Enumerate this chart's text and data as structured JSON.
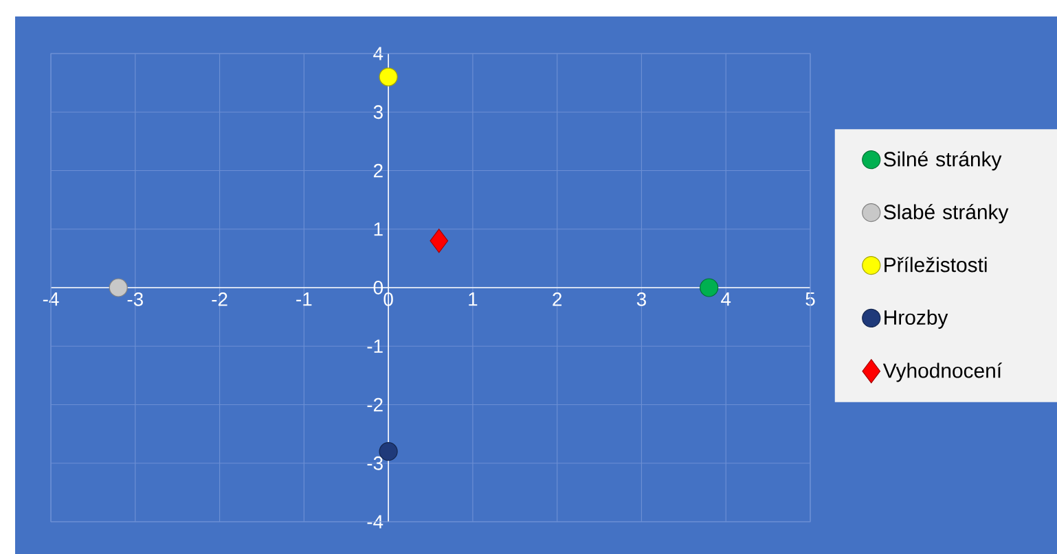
{
  "chart_data": {
    "type": "scatter",
    "xlim": [
      -4,
      5
    ],
    "ylim": [
      -4,
      4
    ],
    "xticks": [
      -4,
      -3,
      -2,
      -1,
      0,
      1,
      2,
      3,
      4,
      5
    ],
    "yticks": [
      -4,
      -3,
      -2,
      -1,
      0,
      1,
      2,
      3,
      4
    ],
    "grid": true,
    "legend": "right",
    "series": [
      {
        "name": "Silné stránky",
        "color": "#00b050",
        "marker": "circle",
        "x": [
          3.8
        ],
        "values": [
          0
        ]
      },
      {
        "name": "Slabé stránky",
        "color": "#c8c8c8",
        "marker": "circle",
        "x": [
          -3.2
        ],
        "values": [
          0
        ]
      },
      {
        "name": "Příležistosti",
        "color": "#ffff00",
        "marker": "circle",
        "x": [
          0
        ],
        "values": [
          3.6
        ]
      },
      {
        "name": "Hrozby",
        "color": "#1f3a7a",
        "marker": "circle",
        "x": [
          0
        ],
        "values": [
          -2.8
        ]
      },
      {
        "name": "Vyhodnocení",
        "color": "#ff0000",
        "marker": "diamond",
        "x": [
          0.6
        ],
        "values": [
          0.8
        ]
      }
    ]
  }
}
